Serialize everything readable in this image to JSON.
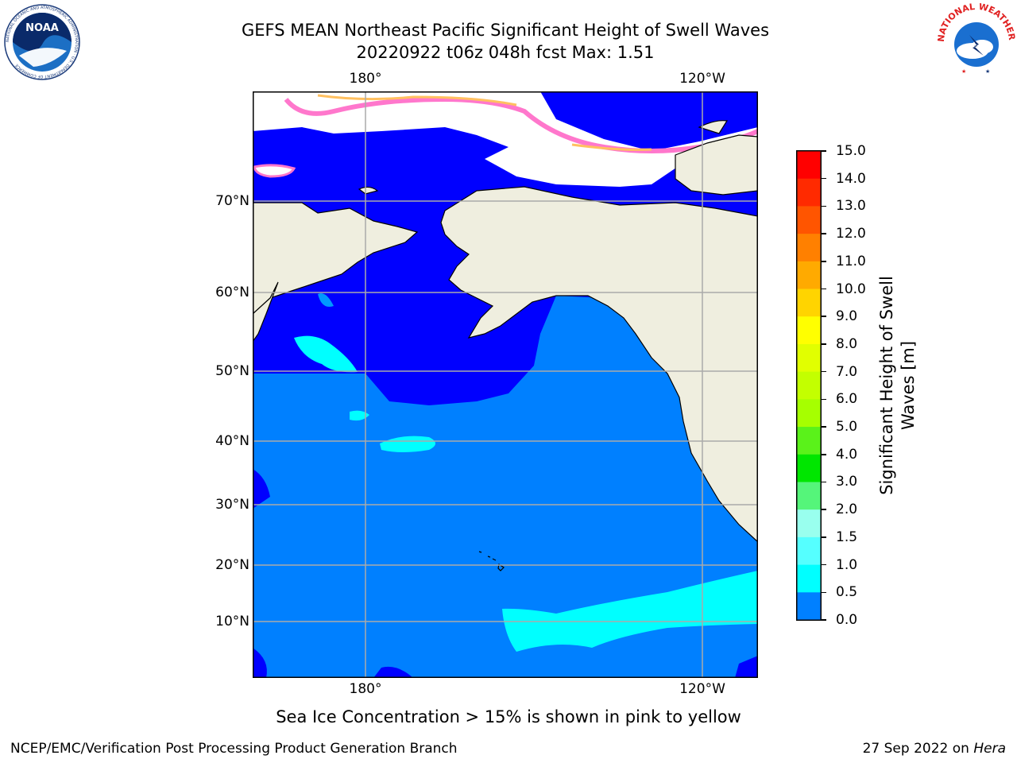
{
  "header": {
    "title_line1": "GEFS MEAN Northeast Pacific Significant Height of Swell Waves",
    "title_line2": "20220922 t06z 048h fcst   Max: 1.51"
  },
  "logos": {
    "left": {
      "name": "NOAA",
      "ring_text": "NATIONAL OCEANIC AND ATMOSPHERIC ADMINISTRATION · U.S. DEPARTMENT OF COMMERCE"
    },
    "right": {
      "name": "NATIONAL WEATHER SERVICE"
    }
  },
  "map": {
    "lon_labels_top": [
      "180°",
      "120°W"
    ],
    "lon_labels_bottom": [
      "180°",
      "120°W"
    ],
    "lat_labels": [
      "70°N",
      "60°N",
      "50°N",
      "40°N",
      "30°N",
      "20°N",
      "10°N"
    ],
    "max_value": 1.51
  },
  "colorbar": {
    "title": "Significant Height of Swell Waves [m]",
    "title_line1": "Significant Height of Swell",
    "title_line2": "Waves [m]",
    "ticks": [
      "15.0",
      "14.0",
      "13.0",
      "12.0",
      "11.0",
      "10.0",
      "9.0",
      "8.0",
      "7.0",
      "6.0",
      "5.0",
      "4.0",
      "3.0",
      "2.0",
      "1.5",
      "1.0",
      "0.5",
      "0.0"
    ],
    "colors_top_to_bottom": [
      "#ff0000",
      "#ff2a00",
      "#ff5500",
      "#ff8000",
      "#ffaa00",
      "#ffd400",
      "#ffff00",
      "#e1ff00",
      "#c3ff00",
      "#a6ff00",
      "#5af21a",
      "#00e600",
      "#55f57a",
      "#99ffee",
      "#55ffff",
      "#00ffff",
      "#0080ff",
      "#0000ff"
    ]
  },
  "caption": "Sea Ice Concentration > 15% is shown in pink to yellow",
  "footer": {
    "left": "NCEP/EMC/Verification Post Processing Product Generation Branch",
    "right_date": "27 Sep 2022 on ",
    "right_host": "Hera"
  }
}
